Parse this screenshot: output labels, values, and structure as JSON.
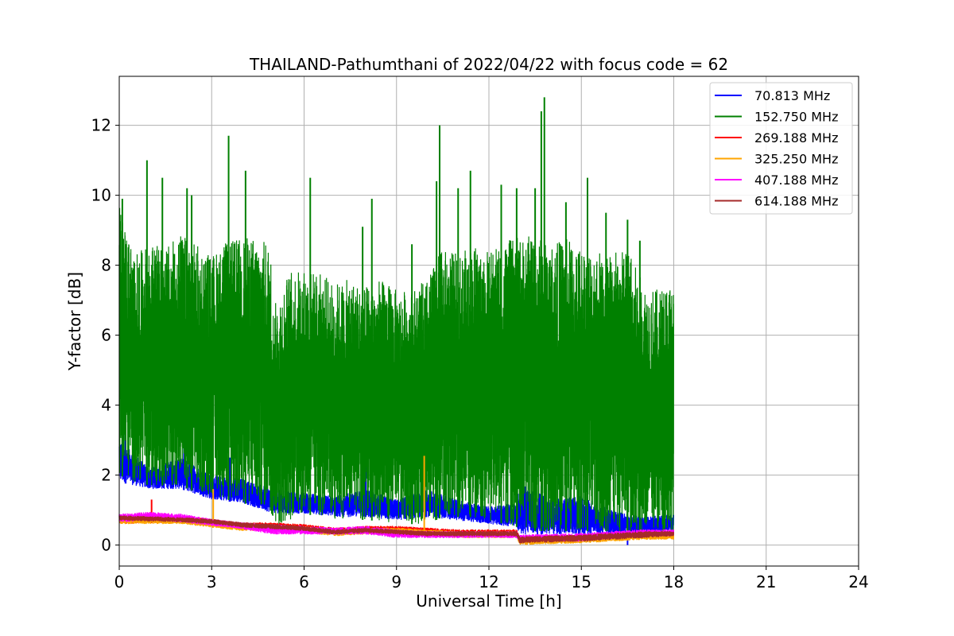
{
  "chart_data": {
    "type": "line",
    "title": "THAILAND-Pathumthani of 2022/04/22 with focus code = 62",
    "xlabel": "Universal Time [h]",
    "ylabel": "Y-factor [dB]",
    "xlim": [
      0,
      24
    ],
    "ylim": [
      -0.6,
      13.4
    ],
    "xticks": [
      0,
      3,
      6,
      9,
      12,
      15,
      18,
      21,
      24
    ],
    "yticks": [
      0,
      2,
      4,
      6,
      8,
      10,
      12
    ],
    "grid": true,
    "legend_position": "top-right",
    "series": [
      {
        "name": " 70.813 MHz",
        "color": "#0000ff",
        "envelope": {
          "x": [
            0,
            1,
            2,
            3,
            4,
            5,
            6,
            7,
            8,
            9,
            10,
            11,
            12,
            12.9,
            13,
            14,
            15,
            16,
            17,
            18
          ],
          "upper": [
            3.0,
            2.2,
            2.5,
            2.0,
            1.9,
            1.6,
            1.5,
            1.4,
            1.6,
            1.3,
            1.6,
            1.3,
            1.1,
            1.2,
            1.8,
            1.3,
            1.4,
            1.0,
            0.8,
            0.9
          ],
          "lower": [
            1.8,
            1.6,
            1.6,
            1.3,
            1.2,
            0.9,
            0.9,
            0.8,
            0.8,
            0.7,
            0.8,
            0.7,
            0.6,
            0.5,
            0.3,
            0.3,
            0.3,
            0.3,
            0.3,
            0.4
          ]
        },
        "spikes": [
          [
            0.2,
            3.5
          ],
          [
            2.1,
            2.9
          ],
          [
            3.6,
            2.5
          ],
          [
            8.0,
            2.3
          ],
          [
            10.3,
            2.7
          ],
          [
            13.7,
            1.7
          ],
          [
            16.5,
            0.0
          ]
        ]
      },
      {
        "name": "152.750 MHz",
        "color": "#008000",
        "envelope": {
          "x": [
            0,
            0.5,
            1,
            1.5,
            2,
            2.5,
            3,
            3.5,
            4,
            4.5,
            4.9,
            5,
            5.5,
            6,
            6.5,
            7,
            7.5,
            8,
            8.5,
            9,
            9.5,
            10,
            10.5,
            11,
            11.5,
            12,
            12.5,
            13,
            13.5,
            14,
            14.5,
            15,
            15.5,
            16,
            16.5,
            17,
            17.5,
            18
          ],
          "upper": [
            9.7,
            8.3,
            8.6,
            8.5,
            8.9,
            8.6,
            8.3,
            8.7,
            8.8,
            8.8,
            8.6,
            6.8,
            7.8,
            7.9,
            7.8,
            7.5,
            7.6,
            7.4,
            7.6,
            7.3,
            7.3,
            7.6,
            8.5,
            8.3,
            8.6,
            8.4,
            8.7,
            8.8,
            8.9,
            8.6,
            8.8,
            8.6,
            8.5,
            8.4,
            8.5,
            7.5,
            7.3,
            7.6
          ],
          "lower": [
            2.0,
            1.8,
            1.7,
            1.7,
            1.7,
            1.5,
            1.4,
            1.3,
            1.2,
            1.1,
            1.0,
            0.4,
            0.7,
            0.9,
            0.8,
            0.7,
            0.8,
            0.7,
            0.7,
            0.6,
            0.6,
            0.6,
            0.8,
            0.8,
            0.8,
            0.7,
            0.6,
            0.5,
            0.4,
            0.4,
            0.4,
            0.4,
            0.4,
            0.4,
            0.3,
            0.3,
            0.3,
            0.4
          ]
        },
        "spikes": [
          [
            0.1,
            9.9
          ],
          [
            0.9,
            11.0
          ],
          [
            1.4,
            10.5
          ],
          [
            2.2,
            10.2
          ],
          [
            2.35,
            10.0
          ],
          [
            3.55,
            11.7
          ],
          [
            4.1,
            10.7
          ],
          [
            6.2,
            10.5
          ],
          [
            7.9,
            9.1
          ],
          [
            8.2,
            9.9
          ],
          [
            9.5,
            8.6
          ],
          [
            10.4,
            12.0
          ],
          [
            10.3,
            10.4
          ],
          [
            11.0,
            10.2
          ],
          [
            11.4,
            10.7
          ],
          [
            12.4,
            10.3
          ],
          [
            12.9,
            10.2
          ],
          [
            13.5,
            10.2
          ],
          [
            13.7,
            12.4
          ],
          [
            13.8,
            12.8
          ],
          [
            14.5,
            9.8
          ],
          [
            15.2,
            10.5
          ],
          [
            15.8,
            9.5
          ],
          [
            16.5,
            9.3
          ],
          [
            16.9,
            8.7
          ]
        ]
      },
      {
        "name": "269.188 MHz",
        "color": "#ff0000",
        "envelope": {
          "x": [
            0,
            2,
            3,
            4,
            5,
            6,
            7,
            8,
            9,
            10,
            11,
            12,
            12.9,
            13,
            15,
            17,
            18
          ],
          "upper": [
            0.85,
            0.85,
            0.75,
            0.65,
            0.65,
            0.6,
            0.5,
            0.55,
            0.55,
            0.5,
            0.45,
            0.45,
            0.45,
            0.25,
            0.3,
            0.4,
            0.4
          ],
          "lower": [
            0.6,
            0.65,
            0.55,
            0.45,
            0.45,
            0.4,
            0.3,
            0.35,
            0.35,
            0.3,
            0.25,
            0.25,
            0.25,
            0.05,
            0.1,
            0.2,
            0.2
          ]
        },
        "spikes": [
          [
            1.05,
            1.3
          ]
        ]
      },
      {
        "name": "325.250 MHz",
        "color": "#ffa500",
        "envelope": {
          "x": [
            0,
            2,
            3,
            4,
            5,
            6,
            7,
            8,
            9,
            10,
            11,
            12,
            12.9,
            13,
            15,
            17,
            18
          ],
          "upper": [
            0.8,
            0.8,
            0.7,
            0.6,
            0.6,
            0.55,
            0.45,
            0.5,
            0.5,
            0.45,
            0.4,
            0.4,
            0.4,
            0.2,
            0.25,
            0.35,
            0.35
          ],
          "lower": [
            0.6,
            0.6,
            0.5,
            0.4,
            0.4,
            0.35,
            0.25,
            0.3,
            0.3,
            0.25,
            0.2,
            0.2,
            0.2,
            0.0,
            0.05,
            0.15,
            0.15
          ]
        },
        "spikes": [
          [
            3.05,
            1.6
          ],
          [
            9.9,
            2.55
          ]
        ]
      },
      {
        "name": "407.188 MHz",
        "color": "#ff00ff",
        "envelope": {
          "x": [
            0,
            1,
            2,
            3,
            4,
            5,
            6,
            7,
            8,
            9,
            10,
            11,
            12,
            12.9,
            13,
            15,
            17,
            18
          ],
          "upper": [
            0.9,
            0.95,
            0.9,
            0.75,
            0.65,
            0.6,
            0.55,
            0.5,
            0.55,
            0.45,
            0.4,
            0.4,
            0.4,
            0.4,
            0.3,
            0.35,
            0.45,
            0.45
          ],
          "lower": [
            0.65,
            0.7,
            0.65,
            0.55,
            0.45,
            0.3,
            0.3,
            0.3,
            0.3,
            0.2,
            0.2,
            0.2,
            0.2,
            0.2,
            0.1,
            0.1,
            0.25,
            0.25
          ]
        },
        "spikes": []
      },
      {
        "name": "614.188 MHz",
        "color": "#a52a2a",
        "envelope": {
          "x": [
            0,
            2,
            3,
            4,
            5,
            6,
            7,
            8,
            9,
            10,
            11,
            12,
            12.9,
            13,
            15,
            17,
            18
          ],
          "upper": [
            0.85,
            0.8,
            0.75,
            0.65,
            0.6,
            0.55,
            0.45,
            0.5,
            0.45,
            0.4,
            0.4,
            0.4,
            0.4,
            0.25,
            0.3,
            0.4,
            0.4
          ],
          "lower": [
            0.7,
            0.65,
            0.6,
            0.5,
            0.45,
            0.4,
            0.3,
            0.35,
            0.3,
            0.25,
            0.25,
            0.25,
            0.25,
            0.05,
            0.1,
            0.2,
            0.25
          ]
        },
        "spikes": []
      }
    ]
  }
}
